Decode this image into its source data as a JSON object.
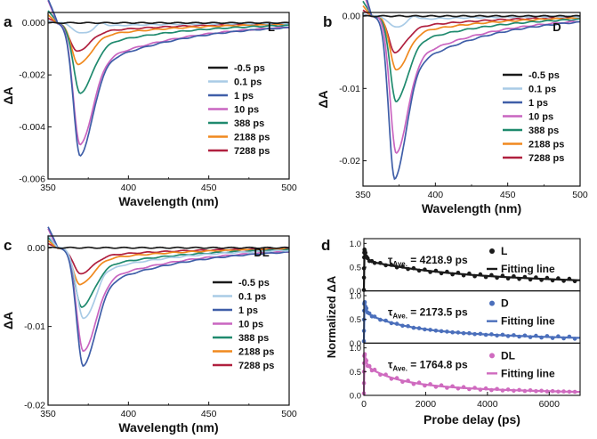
{
  "colors": {
    "-0.5 ps": "#1a1a1a",
    "0.1 ps": "#a9cbe6",
    "1 ps": "#3f5ea8",
    "10 ps": "#c965c0",
    "388 ps": "#1f8a6e",
    "2188 ps": "#f0891e",
    "7288 ps": "#b0203f",
    "fitL": "#1a1a1a",
    "fitD": "#4b6fbb",
    "fitDL": "#cf6bbf"
  },
  "chart_data": [
    {
      "type": "line",
      "panel_letter": "a",
      "tag": "L",
      "xlabel": "Wavelength (nm)",
      "ylabel": "ΔA",
      "xlim": [
        350,
        500
      ],
      "ylim": [
        -0.006,
        0.0004
      ],
      "xticks": [
        350,
        400,
        450,
        500
      ],
      "yticks": [
        0.0,
        -0.002,
        -0.004,
        -0.006
      ],
      "ytick_labels": [
        "0.000",
        "-0.002",
        "-0.004",
        "-0.006"
      ],
      "series": [
        {
          "name": "-0.5 ps",
          "min_x": 370,
          "min_y": 0.0
        },
        {
          "name": "0.1 ps",
          "min_x": 370,
          "min_y": -0.0004
        },
        {
          "name": "1 ps",
          "min_x": 370,
          "min_y": -0.0051
        },
        {
          "name": "10 ps",
          "min_x": 370,
          "min_y": -0.0047
        },
        {
          "name": "388 ps",
          "min_x": 370,
          "min_y": -0.0027
        },
        {
          "name": "2188 ps",
          "min_x": 369,
          "min_y": -0.0016
        },
        {
          "name": "7288 ps",
          "min_x": 368,
          "min_y": -0.0011
        }
      ]
    },
    {
      "type": "line",
      "panel_letter": "b",
      "tag": "D",
      "xlabel": "Wavelength (nm)",
      "ylabel": "ΔA",
      "xlim": [
        350,
        500
      ],
      "ylim": [
        -0.0235,
        0.0005
      ],
      "xticks": [
        350,
        400,
        450,
        500
      ],
      "yticks": [
        0.0,
        -0.01,
        -0.02
      ],
      "ytick_labels": [
        "0.00",
        "-0.01",
        "-0.02"
      ],
      "series": [
        {
          "name": "-0.5 ps",
          "min_x": 372,
          "min_y": 0.0
        },
        {
          "name": "0.1 ps",
          "min_x": 372,
          "min_y": -0.0015
        },
        {
          "name": "1 ps",
          "min_x": 372,
          "min_y": -0.0225
        },
        {
          "name": "10 ps",
          "min_x": 373,
          "min_y": -0.019
        },
        {
          "name": "388 ps",
          "min_x": 373,
          "min_y": -0.0118
        },
        {
          "name": "2188 ps",
          "min_x": 373,
          "min_y": -0.0075
        },
        {
          "name": "7288 ps",
          "min_x": 372,
          "min_y": -0.005
        }
      ]
    },
    {
      "type": "line",
      "panel_letter": "c",
      "tag": "DL",
      "xlabel": "Wavelength (nm)",
      "ylabel": "ΔA",
      "xlim": [
        350,
        500
      ],
      "ylim": [
        -0.02,
        0.0015
      ],
      "xticks": [
        350,
        400,
        450,
        500
      ],
      "yticks": [
        0.0,
        -0.01,
        -0.02
      ],
      "ytick_labels": [
        "0.00",
        "-0.01",
        "-0.02"
      ],
      "series": [
        {
          "name": "-0.5 ps",
          "min_x": 372,
          "min_y": 0.0
        },
        {
          "name": "0.1 ps",
          "min_x": 372,
          "min_y": -0.009
        },
        {
          "name": "1 ps",
          "min_x": 372,
          "min_y": -0.015
        },
        {
          "name": "10 ps",
          "min_x": 372,
          "min_y": -0.0132
        },
        {
          "name": "388 ps",
          "min_x": 371,
          "min_y": -0.0075
        },
        {
          "name": "2188 ps",
          "min_x": 370,
          "min_y": -0.0047
        },
        {
          "name": "7288 ps",
          "min_x": 370,
          "min_y": -0.0033
        }
      ]
    },
    {
      "type": "scatter",
      "panel_letter": "d",
      "xlabel": "Probe delay (ps)",
      "ylabel": "Normalized ΔA",
      "xlim": [
        0,
        7000
      ],
      "xticks": [
        0,
        2000,
        4000,
        6000
      ],
      "subpanels": [
        {
          "name": "L",
          "tau_label": "τ",
          "tau_sub": "Ave.",
          "tau_value": "= 4218.9 ps",
          "legend_fit": "Fitting line",
          "ylim": [
            0,
            1.1
          ],
          "yticks": [
            0.0,
            0.5,
            1.0
          ],
          "ytick_labels": [
            "0.0",
            "0.5",
            "1.0"
          ],
          "plateau": 0.35,
          "tau": 4218.9
        },
        {
          "name": "D",
          "tau_label": "τ",
          "tau_sub": "Ave.",
          "tau_value": "= 2173.5 ps",
          "legend_fit": "Fitting line",
          "ylim": [
            0,
            1.1
          ],
          "yticks": [
            0.0,
            0.5,
            1.0
          ],
          "ytick_labels": [
            "0.0",
            "0.5",
            "1.0"
          ],
          "plateau": 0.3,
          "tau": 2173.5
        },
        {
          "name": "DL",
          "tau_label": "τ",
          "tau_sub": "Ave.",
          "tau_value": "= 1764.8 ps",
          "legend_fit": "Fitting line",
          "ylim": [
            0,
            1.1
          ],
          "yticks": [
            0.0,
            0.5,
            1.0
          ],
          "ytick_labels": [
            "0.0",
            "0.5",
            "1.0"
          ],
          "plateau": 0.25,
          "tau": 1764.8
        }
      ]
    }
  ]
}
